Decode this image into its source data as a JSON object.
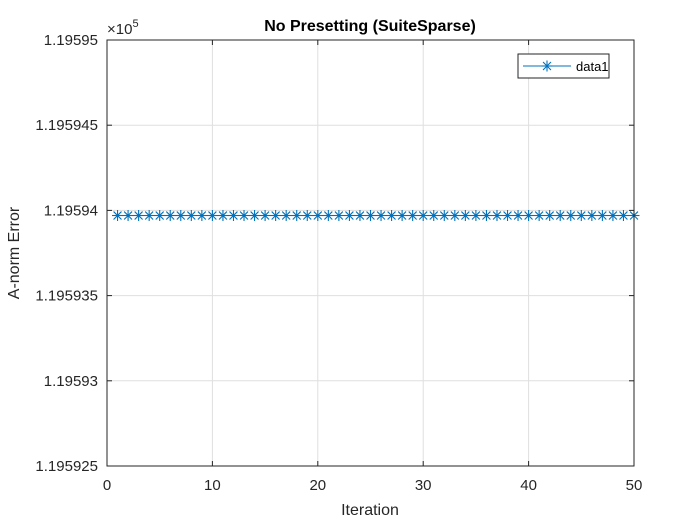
{
  "chart_data": {
    "type": "line",
    "title": "No Presetting (SuiteSparse)",
    "xlabel": "Iteration",
    "ylabel": "A-norm Error",
    "xlim": [
      0,
      50
    ],
    "ylim": [
      119592.5,
      119595.0
    ],
    "x_ticks": [
      0,
      10,
      20,
      30,
      40,
      50
    ],
    "x_tick_labels": [
      "0",
      "10",
      "20",
      "30",
      "40",
      "50"
    ],
    "y_ticks": [
      119592.5,
      119593.0,
      119593.5,
      119594.0,
      119594.5,
      119595.0
    ],
    "y_tick_labels": [
      "1.195925",
      "1.19593",
      "1.195935",
      "1.19594",
      "1.195945",
      "1.19595"
    ],
    "y_exponent_base": "×10",
    "y_exponent": "5",
    "grid": true,
    "legend_position": "top-right",
    "series": [
      {
        "name": "data1",
        "color": "#0072BD",
        "marker": "*",
        "x": [
          1,
          2,
          3,
          4,
          5,
          6,
          7,
          8,
          9,
          10,
          11,
          12,
          13,
          14,
          15,
          16,
          17,
          18,
          19,
          20,
          21,
          22,
          23,
          24,
          25,
          26,
          27,
          28,
          29,
          30,
          31,
          32,
          33,
          34,
          35,
          36,
          37,
          38,
          39,
          40,
          41,
          42,
          43,
          44,
          45,
          46,
          47,
          48,
          49,
          50
        ],
        "values": [
          119593.97,
          119593.97,
          119593.97,
          119593.97,
          119593.97,
          119593.97,
          119593.97,
          119593.97,
          119593.97,
          119593.97,
          119593.97,
          119593.97,
          119593.97,
          119593.97,
          119593.97,
          119593.97,
          119593.97,
          119593.97,
          119593.97,
          119593.97,
          119593.97,
          119593.97,
          119593.97,
          119593.97,
          119593.97,
          119593.97,
          119593.97,
          119593.97,
          119593.97,
          119593.97,
          119593.97,
          119593.97,
          119593.97,
          119593.97,
          119593.97,
          119593.97,
          119593.97,
          119593.97,
          119593.97,
          119593.97,
          119593.97,
          119593.97,
          119593.97,
          119593.97,
          119593.97,
          119593.97,
          119593.97,
          119593.97,
          119593.97,
          119593.97
        ]
      }
    ]
  }
}
